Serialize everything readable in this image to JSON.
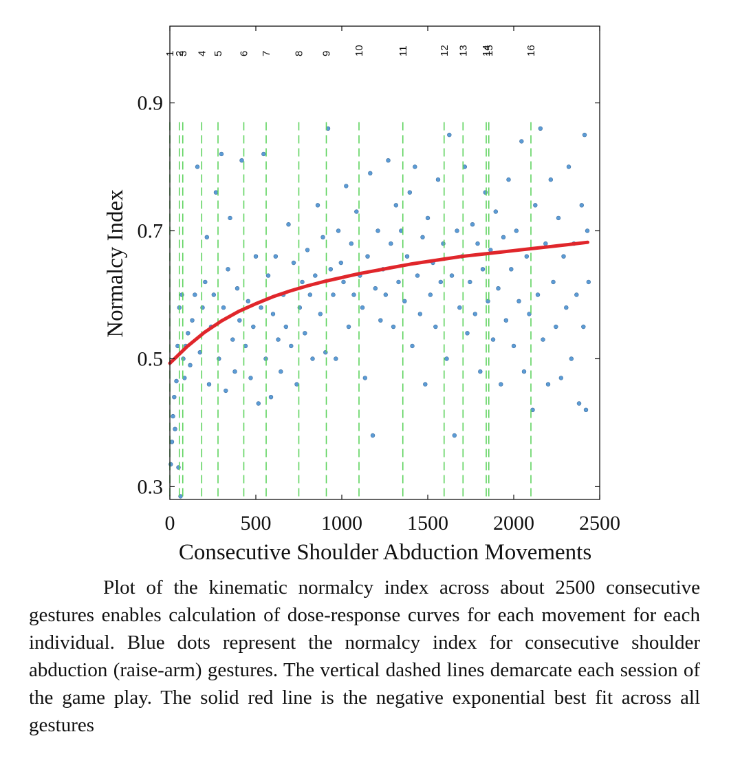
{
  "chart_data": {
    "type": "scatter",
    "xlabel": "Consecutive Shoulder Abduction Movements",
    "ylabel": "Normalcy Index",
    "xlim": [
      0,
      2500
    ],
    "ylim": [
      0.28,
      1.02
    ],
    "x_ticks": [
      0,
      500,
      1000,
      1500,
      2000,
      2500
    ],
    "x_tick_labels": [
      "0",
      "500",
      "1000",
      "1500",
      "2000",
      "2500"
    ],
    "y_ticks": [
      0.3,
      0.5,
      0.7,
      0.9
    ],
    "y_tick_labels": [
      "0.3",
      "0.5",
      "0.7",
      "0.9"
    ],
    "grid": false,
    "colors": {
      "points": "#5b9bd5",
      "points_edge": "#3f6f9f",
      "fit": "#e0262b",
      "session_lines": "#5fd35f",
      "axes": "#111111"
    },
    "session_boundaries": [
      {
        "label": "1",
        "x": 0
      },
      {
        "label": "2",
        "x": 55
      },
      {
        "label": "3",
        "x": 75
      },
      {
        "label": "4",
        "x": 185
      },
      {
        "label": "5",
        "x": 280
      },
      {
        "label": "6",
        "x": 430
      },
      {
        "label": "7",
        "x": 560
      },
      {
        "label": "8",
        "x": 750
      },
      {
        "label": "9",
        "x": 910
      },
      {
        "label": "10",
        "x": 1100
      },
      {
        "label": "11",
        "x": 1355
      },
      {
        "label": "12",
        "x": 1595
      },
      {
        "label": "13",
        "x": 1705
      },
      {
        "label": "14",
        "x": 1840
      },
      {
        "label": "15",
        "x": 1855
      },
      {
        "label": "16",
        "x": 2100
      }
    ],
    "session_line_ylim": [
      0.28,
      0.87
    ],
    "fit": {
      "model": "negative exponential",
      "x": [
        0,
        100,
        200,
        300,
        400,
        500,
        600,
        700,
        800,
        900,
        1000,
        1100,
        1200,
        1300,
        1400,
        1500,
        1600,
        1700,
        1800,
        1900,
        2000,
        2100,
        2200,
        2300,
        2430
      ],
      "y": [
        0.493,
        0.519,
        0.541,
        0.559,
        0.574,
        0.586,
        0.597,
        0.606,
        0.614,
        0.621,
        0.627,
        0.633,
        0.638,
        0.643,
        0.648,
        0.652,
        0.656,
        0.66,
        0.663,
        0.666,
        0.669,
        0.672,
        0.675,
        0.678,
        0.682
      ]
    },
    "series": [
      {
        "values": [
          [
            5,
            0.335
          ],
          [
            12,
            0.37
          ],
          [
            18,
            0.41
          ],
          [
            25,
            0.44
          ],
          [
            30,
            0.39
          ],
          [
            38,
            0.465
          ],
          [
            45,
            0.52
          ],
          [
            50,
            0.33
          ],
          [
            55,
            0.58
          ],
          [
            62,
            0.285
          ],
          [
            70,
            0.6
          ],
          [
            78,
            0.5
          ],
          [
            85,
            0.47
          ],
          [
            92,
            0.52
          ],
          [
            105,
            0.54
          ],
          [
            118,
            0.49
          ],
          [
            130,
            0.56
          ],
          [
            145,
            0.6
          ],
          [
            160,
            0.8
          ],
          [
            175,
            0.51
          ],
          [
            190,
            0.58
          ],
          [
            205,
            0.62
          ],
          [
            215,
            0.69
          ],
          [
            228,
            0.46
          ],
          [
            240,
            0.55
          ],
          [
            255,
            0.6
          ],
          [
            268,
            0.76
          ],
          [
            285,
            0.5
          ],
          [
            300,
            0.82
          ],
          [
            312,
            0.58
          ],
          [
            325,
            0.45
          ],
          [
            338,
            0.64
          ],
          [
            350,
            0.72
          ],
          [
            365,
            0.53
          ],
          [
            378,
            0.48
          ],
          [
            392,
            0.61
          ],
          [
            405,
            0.56
          ],
          [
            418,
            0.81
          ],
          [
            440,
            0.52
          ],
          [
            455,
            0.59
          ],
          [
            470,
            0.47
          ],
          [
            485,
            0.55
          ],
          [
            500,
            0.66
          ],
          [
            515,
            0.43
          ],
          [
            530,
            0.58
          ],
          [
            545,
            0.82
          ],
          [
            558,
            0.5
          ],
          [
            572,
            0.63
          ],
          [
            588,
            0.44
          ],
          [
            600,
            0.57
          ],
          [
            615,
            0.66
          ],
          [
            630,
            0.53
          ],
          [
            645,
            0.48
          ],
          [
            660,
            0.6
          ],
          [
            675,
            0.55
          ],
          [
            690,
            0.71
          ],
          [
            705,
            0.52
          ],
          [
            720,
            0.65
          ],
          [
            738,
            0.46
          ],
          [
            755,
            0.58
          ],
          [
            770,
            0.62
          ],
          [
            785,
            0.54
          ],
          [
            800,
            0.67
          ],
          [
            815,
            0.6
          ],
          [
            830,
            0.5
          ],
          [
            845,
            0.63
          ],
          [
            860,
            0.74
          ],
          [
            875,
            0.57
          ],
          [
            890,
            0.69
          ],
          [
            905,
            0.51
          ],
          [
            920,
            0.86
          ],
          [
            935,
            0.64
          ],
          [
            950,
            0.6
          ],
          [
            965,
            0.5
          ],
          [
            980,
            0.7
          ],
          [
            995,
            0.65
          ],
          [
            1010,
            0.62
          ],
          [
            1025,
            0.77
          ],
          [
            1040,
            0.55
          ],
          [
            1055,
            0.68
          ],
          [
            1070,
            0.6
          ],
          [
            1085,
            0.73
          ],
          [
            1105,
            0.63
          ],
          [
            1120,
            0.58
          ],
          [
            1135,
            0.47
          ],
          [
            1150,
            0.66
          ],
          [
            1165,
            0.79
          ],
          [
            1180,
            0.38
          ],
          [
            1195,
            0.61
          ],
          [
            1210,
            0.7
          ],
          [
            1225,
            0.56
          ],
          [
            1240,
            0.64
          ],
          [
            1255,
            0.6
          ],
          [
            1270,
            0.81
          ],
          [
            1285,
            0.68
          ],
          [
            1300,
            0.55
          ],
          [
            1315,
            0.74
          ],
          [
            1330,
            0.62
          ],
          [
            1345,
            0.7
          ],
          [
            1365,
            0.59
          ],
          [
            1380,
            0.66
          ],
          [
            1395,
            0.76
          ],
          [
            1410,
            0.52
          ],
          [
            1425,
            0.8
          ],
          [
            1440,
            0.63
          ],
          [
            1455,
            0.57
          ],
          [
            1470,
            0.69
          ],
          [
            1485,
            0.46
          ],
          [
            1500,
            0.72
          ],
          [
            1515,
            0.6
          ],
          [
            1530,
            0.65
          ],
          [
            1545,
            0.55
          ],
          [
            1560,
            0.78
          ],
          [
            1575,
            0.62
          ],
          [
            1590,
            0.68
          ],
          [
            1610,
            0.5
          ],
          [
            1625,
            0.85
          ],
          [
            1640,
            0.63
          ],
          [
            1655,
            0.38
          ],
          [
            1670,
            0.7
          ],
          [
            1685,
            0.58
          ],
          [
            1700,
            0.66
          ],
          [
            1715,
            0.8
          ],
          [
            1730,
            0.54
          ],
          [
            1745,
            0.62
          ],
          [
            1760,
            0.71
          ],
          [
            1775,
            0.57
          ],
          [
            1790,
            0.68
          ],
          [
            1805,
            0.48
          ],
          [
            1820,
            0.64
          ],
          [
            1835,
            0.76
          ],
          [
            1850,
            0.59
          ],
          [
            1865,
            0.67
          ],
          [
            1880,
            0.53
          ],
          [
            1895,
            0.73
          ],
          [
            1910,
            0.61
          ],
          [
            1925,
            0.46
          ],
          [
            1940,
            0.69
          ],
          [
            1955,
            0.56
          ],
          [
            1970,
            0.78
          ],
          [
            1985,
            0.64
          ],
          [
            2000,
            0.52
          ],
          [
            2015,
            0.7
          ],
          [
            2030,
            0.59
          ],
          [
            2045,
            0.84
          ],
          [
            2060,
            0.48
          ],
          [
            2075,
            0.66
          ],
          [
            2090,
            0.57
          ],
          [
            2110,
            0.42
          ],
          [
            2125,
            0.74
          ],
          [
            2140,
            0.6
          ],
          [
            2155,
            0.86
          ],
          [
            2170,
            0.53
          ],
          [
            2185,
            0.68
          ],
          [
            2200,
            0.46
          ],
          [
            2215,
            0.78
          ],
          [
            2230,
            0.62
          ],
          [
            2245,
            0.55
          ],
          [
            2260,
            0.72
          ],
          [
            2275,
            0.47
          ],
          [
            2290,
            0.66
          ],
          [
            2305,
            0.58
          ],
          [
            2320,
            0.8
          ],
          [
            2335,
            0.5
          ],
          [
            2350,
            0.68
          ],
          [
            2365,
            0.6
          ],
          [
            2380,
            0.43
          ],
          [
            2395,
            0.74
          ],
          [
            2405,
            0.55
          ],
          [
            2412,
            0.85
          ],
          [
            2420,
            0.42
          ],
          [
            2428,
            0.7
          ],
          [
            2435,
            0.62
          ]
        ]
      }
    ]
  },
  "caption": "Plot of the kinematic normalcy index across about 2500 consecutive gestures enables calculation of dose-response curves for each movement for each individual. Blue dots represent the normalcy index for consecutive shoulder abduction (raise-arm) gestures. The vertical dashed lines demarcate each session of the game play. The solid red line is the negative exponential best fit across all gestures"
}
